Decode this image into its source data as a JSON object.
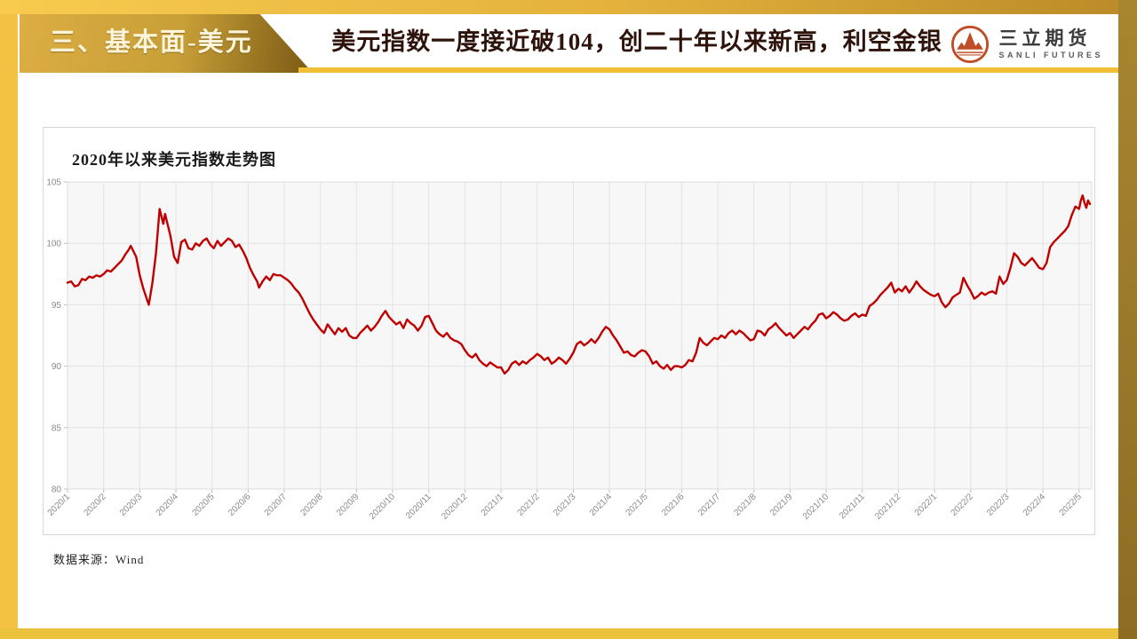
{
  "slide": {
    "section_label": "三、基本面-美元",
    "title": "美元指数一度接近破104，创二十年以来新高，利空金银",
    "source_note": "数据来源：Wind"
  },
  "logo": {
    "name_cn": "三立期货",
    "name_en": "SANLI FUTURES",
    "mark": "mountain-circle-icon",
    "mark_color": "#bf4e28"
  },
  "colors": {
    "gold_bg": "#f3c242",
    "gold_top_from": "#f8cb4e",
    "gold_top_to": "#b98b28",
    "gold_right": "#9c7c2c",
    "gold_bottom": "#eac23c",
    "ribbon_from": "#dcae43",
    "ribbon_mid": "#c79e37",
    "ribbon_to": "#7a5b14",
    "ribbon_text": "#fdf4da",
    "underline": "#f0bf33",
    "title_text": "#2e130b"
  },
  "chart_data": {
    "type": "line",
    "title": "2020年以来美元指数走势图",
    "series_name": "美元指数",
    "xlabel": "",
    "ylabel": "",
    "ylim": [
      80,
      105
    ],
    "xlim": [
      0,
      28.35
    ],
    "yticks": [
      80,
      85,
      90,
      95,
      100,
      105
    ],
    "grid": true,
    "legend_position": "none",
    "line_color": "#c00000",
    "plot_bg": "#f7f7f7",
    "grid_color": "#e3e3e3",
    "xtick_labels": [
      "2020/1",
      "2020/2",
      "2020/3",
      "2020/4",
      "2020/5",
      "2020/6",
      "2020/7",
      "2020/8",
      "2020/9",
      "2020/10",
      "2020/11",
      "2020/12",
      "2021/1",
      "2021/2",
      "2021/3",
      "2021/4",
      "2021/5",
      "2021/6",
      "2021/7",
      "2021/8",
      "2021/9",
      "2021/10",
      "2021/11",
      "2021/12",
      "2022/1",
      "2022/2",
      "2022/3",
      "2022/4",
      "2022/5"
    ],
    "points": [
      [
        0,
        96.8
      ],
      [
        0.1,
        96.9
      ],
      [
        0.2,
        96.5
      ],
      [
        0.3,
        96.6
      ],
      [
        0.4,
        97.1
      ],
      [
        0.5,
        97
      ],
      [
        0.6,
        97.3
      ],
      [
        0.7,
        97.2
      ],
      [
        0.8,
        97.4
      ],
      [
        0.9,
        97.3
      ],
      [
        1,
        97.5
      ],
      [
        1.1,
        97.8
      ],
      [
        1.2,
        97.7
      ],
      [
        1.3,
        98
      ],
      [
        1.4,
        98.3
      ],
      [
        1.5,
        98.6
      ],
      [
        1.6,
        99.1
      ],
      [
        1.7,
        99.5
      ],
      [
        1.75,
        99.8
      ],
      [
        1.9,
        98.9
      ],
      [
        2,
        97.4
      ],
      [
        2.1,
        96.3
      ],
      [
        2.25,
        95
      ],
      [
        2.35,
        96.8
      ],
      [
        2.45,
        99.2
      ],
      [
        2.55,
        102.8
      ],
      [
        2.65,
        101.6
      ],
      [
        2.7,
        102.4
      ],
      [
        2.85,
        100.6
      ],
      [
        2.95,
        98.9
      ],
      [
        3.05,
        98.4
      ],
      [
        3.15,
        100.1
      ],
      [
        3.25,
        100.3
      ],
      [
        3.35,
        99.6
      ],
      [
        3.45,
        99.5
      ],
      [
        3.55,
        100
      ],
      [
        3.65,
        99.8
      ],
      [
        3.75,
        100.2
      ],
      [
        3.85,
        100.4
      ],
      [
        3.95,
        99.9
      ],
      [
        4.05,
        99.6
      ],
      [
        4.15,
        100.2
      ],
      [
        4.25,
        99.8
      ],
      [
        4.35,
        100.1
      ],
      [
        4.45,
        100.4
      ],
      [
        4.55,
        100.2
      ],
      [
        4.65,
        99.7
      ],
      [
        4.75,
        99.9
      ],
      [
        4.85,
        99.4
      ],
      [
        4.95,
        98.8
      ],
      [
        5.05,
        98
      ],
      [
        5.15,
        97.4
      ],
      [
        5.25,
        96.9
      ],
      [
        5.3,
        96.4
      ],
      [
        5.4,
        96.9
      ],
      [
        5.5,
        97.3
      ],
      [
        5.6,
        97
      ],
      [
        5.7,
        97.5
      ],
      [
        5.8,
        97.4
      ],
      [
        5.9,
        97.4
      ],
      [
        6,
        97.2
      ],
      [
        6.1,
        97
      ],
      [
        6.2,
        96.7
      ],
      [
        6.3,
        96.3
      ],
      [
        6.4,
        96
      ],
      [
        6.5,
        95.5
      ],
      [
        6.6,
        94.9
      ],
      [
        6.7,
        94.3
      ],
      [
        6.8,
        93.8
      ],
      [
        6.9,
        93.4
      ],
      [
        7,
        93
      ],
      [
        7.1,
        92.7
      ],
      [
        7.2,
        93.4
      ],
      [
        7.3,
        93
      ],
      [
        7.4,
        92.6
      ],
      [
        7.5,
        93.1
      ],
      [
        7.6,
        92.8
      ],
      [
        7.7,
        93.1
      ],
      [
        7.8,
        92.5
      ],
      [
        7.9,
        92.3
      ],
      [
        8,
        92.3
      ],
      [
        8.1,
        92.7
      ],
      [
        8.2,
        93
      ],
      [
        8.3,
        93.3
      ],
      [
        8.4,
        92.9
      ],
      [
        8.5,
        93.2
      ],
      [
        8.6,
        93.6
      ],
      [
        8.7,
        94.1
      ],
      [
        8.8,
        94.5
      ],
      [
        8.9,
        94
      ],
      [
        9,
        93.7
      ],
      [
        9.1,
        93.4
      ],
      [
        9.2,
        93.6
      ],
      [
        9.3,
        93.1
      ],
      [
        9.4,
        93.8
      ],
      [
        9.5,
        93.5
      ],
      [
        9.6,
        93.3
      ],
      [
        9.7,
        92.9
      ],
      [
        9.8,
        93.3
      ],
      [
        9.9,
        94
      ],
      [
        10,
        94.1
      ],
      [
        10.1,
        93.5
      ],
      [
        10.2,
        92.9
      ],
      [
        10.3,
        92.6
      ],
      [
        10.4,
        92.4
      ],
      [
        10.5,
        92.7
      ],
      [
        10.6,
        92.3
      ],
      [
        10.7,
        92.1
      ],
      [
        10.8,
        92
      ],
      [
        10.9,
        91.8
      ],
      [
        11,
        91.3
      ],
      [
        11.1,
        90.9
      ],
      [
        11.2,
        90.7
      ],
      [
        11.3,
        91
      ],
      [
        11.4,
        90.5
      ],
      [
        11.5,
        90.2
      ],
      [
        11.6,
        90
      ],
      [
        11.7,
        90.3
      ],
      [
        11.8,
        90.1
      ],
      [
        11.9,
        89.9
      ],
      [
        12,
        89.9
      ],
      [
        12.1,
        89.4
      ],
      [
        12.2,
        89.7
      ],
      [
        12.3,
        90.2
      ],
      [
        12.4,
        90.4
      ],
      [
        12.5,
        90.1
      ],
      [
        12.6,
        90.4
      ],
      [
        12.7,
        90.2
      ],
      [
        12.8,
        90.5
      ],
      [
        12.9,
        90.7
      ],
      [
        13,
        91
      ],
      [
        13.1,
        90.8
      ],
      [
        13.2,
        90.5
      ],
      [
        13.3,
        90.7
      ],
      [
        13.4,
        90.2
      ],
      [
        13.5,
        90.4
      ],
      [
        13.6,
        90.7
      ],
      [
        13.7,
        90.5
      ],
      [
        13.8,
        90.2
      ],
      [
        13.9,
        90.6
      ],
      [
        14,
        91.1
      ],
      [
        14.1,
        91.8
      ],
      [
        14.2,
        92
      ],
      [
        14.3,
        91.7
      ],
      [
        14.4,
        91.9
      ],
      [
        14.5,
        92.2
      ],
      [
        14.6,
        91.9
      ],
      [
        14.7,
        92.3
      ],
      [
        14.8,
        92.8
      ],
      [
        14.9,
        93.2
      ],
      [
        15,
        93
      ],
      [
        15.1,
        92.5
      ],
      [
        15.2,
        92.1
      ],
      [
        15.3,
        91.6
      ],
      [
        15.4,
        91.1
      ],
      [
        15.5,
        91.2
      ],
      [
        15.6,
        90.9
      ],
      [
        15.7,
        90.8
      ],
      [
        15.8,
        91.1
      ],
      [
        15.9,
        91.3
      ],
      [
        16,
        91.2
      ],
      [
        16.1,
        90.8
      ],
      [
        16.2,
        90.2
      ],
      [
        16.3,
        90.4
      ],
      [
        16.4,
        90
      ],
      [
        16.5,
        89.8
      ],
      [
        16.6,
        90.1
      ],
      [
        16.7,
        89.7
      ],
      [
        16.8,
        90
      ],
      [
        16.9,
        90
      ],
      [
        17,
        89.9
      ],
      [
        17.1,
        90.1
      ],
      [
        17.2,
        90.5
      ],
      [
        17.3,
        90.4
      ],
      [
        17.4,
        91.1
      ],
      [
        17.5,
        92.3
      ],
      [
        17.6,
        91.9
      ],
      [
        17.7,
        91.7
      ],
      [
        17.8,
        92
      ],
      [
        17.9,
        92.3
      ],
      [
        18,
        92.2
      ],
      [
        18.1,
        92.5
      ],
      [
        18.2,
        92.3
      ],
      [
        18.3,
        92.7
      ],
      [
        18.4,
        92.9
      ],
      [
        18.5,
        92.6
      ],
      [
        18.6,
        92.9
      ],
      [
        18.7,
        92.7
      ],
      [
        18.8,
        92.4
      ],
      [
        18.9,
        92.1
      ],
      [
        19,
        92.2
      ],
      [
        19.1,
        92.9
      ],
      [
        19.2,
        92.8
      ],
      [
        19.3,
        92.5
      ],
      [
        19.4,
        93
      ],
      [
        19.5,
        93.2
      ],
      [
        19.6,
        93.5
      ],
      [
        19.7,
        93.1
      ],
      [
        19.8,
        92.8
      ],
      [
        19.9,
        92.5
      ],
      [
        20,
        92.7
      ],
      [
        20.1,
        92.3
      ],
      [
        20.2,
        92.6
      ],
      [
        20.3,
        92.9
      ],
      [
        20.4,
        93.2
      ],
      [
        20.5,
        93
      ],
      [
        20.6,
        93.4
      ],
      [
        20.7,
        93.7
      ],
      [
        20.8,
        94.2
      ],
      [
        20.9,
        94.3
      ],
      [
        21,
        93.9
      ],
      [
        21.1,
        94.1
      ],
      [
        21.2,
        94.4
      ],
      [
        21.3,
        94.2
      ],
      [
        21.4,
        93.9
      ],
      [
        21.5,
        93.7
      ],
      [
        21.6,
        93.8
      ],
      [
        21.7,
        94.1
      ],
      [
        21.8,
        94.3
      ],
      [
        21.9,
        94
      ],
      [
        22,
        94.2
      ],
      [
        22.1,
        94.1
      ],
      [
        22.2,
        94.9
      ],
      [
        22.3,
        95.1
      ],
      [
        22.4,
        95.4
      ],
      [
        22.5,
        95.8
      ],
      [
        22.6,
        96.1
      ],
      [
        22.7,
        96.4
      ],
      [
        22.8,
        96.8
      ],
      [
        22.9,
        96
      ],
      [
        23,
        96.3
      ],
      [
        23.1,
        96.1
      ],
      [
        23.2,
        96.5
      ],
      [
        23.3,
        96
      ],
      [
        23.4,
        96.4
      ],
      [
        23.5,
        96.9
      ],
      [
        23.6,
        96.5
      ],
      [
        23.7,
        96.2
      ],
      [
        23.8,
        96
      ],
      [
        23.9,
        95.8
      ],
      [
        24,
        95.7
      ],
      [
        24.1,
        95.9
      ],
      [
        24.2,
        95.2
      ],
      [
        24.3,
        94.8
      ],
      [
        24.4,
        95.1
      ],
      [
        24.5,
        95.6
      ],
      [
        24.6,
        95.8
      ],
      [
        24.7,
        96
      ],
      [
        24.8,
        97.2
      ],
      [
        24.9,
        96.6
      ],
      [
        25,
        96.1
      ],
      [
        25.1,
        95.5
      ],
      [
        25.2,
        95.7
      ],
      [
        25.3,
        96
      ],
      [
        25.4,
        95.8
      ],
      [
        25.5,
        96
      ],
      [
        25.6,
        96.1
      ],
      [
        25.7,
        95.9
      ],
      [
        25.8,
        97.3
      ],
      [
        25.9,
        96.7
      ],
      [
        26,
        97
      ],
      [
        26.1,
        98
      ],
      [
        26.2,
        99.2
      ],
      [
        26.3,
        98.9
      ],
      [
        26.4,
        98.4
      ],
      [
        26.5,
        98.2
      ],
      [
        26.6,
        98.5
      ],
      [
        26.7,
        98.8
      ],
      [
        26.8,
        98.4
      ],
      [
        26.9,
        98
      ],
      [
        27,
        97.9
      ],
      [
        27.1,
        98.4
      ],
      [
        27.2,
        99.7
      ],
      [
        27.3,
        100.1
      ],
      [
        27.4,
        100.4
      ],
      [
        27.5,
        100.7
      ],
      [
        27.6,
        101
      ],
      [
        27.7,
        101.4
      ],
      [
        27.8,
        102.3
      ],
      [
        27.9,
        103
      ],
      [
        28,
        102.8
      ],
      [
        28.05,
        103.5
      ],
      [
        28.1,
        103.9
      ],
      [
        28.15,
        103.3
      ],
      [
        28.2,
        102.9
      ],
      [
        28.25,
        103.5
      ],
      [
        28.3,
        103.2
      ]
    ]
  }
}
